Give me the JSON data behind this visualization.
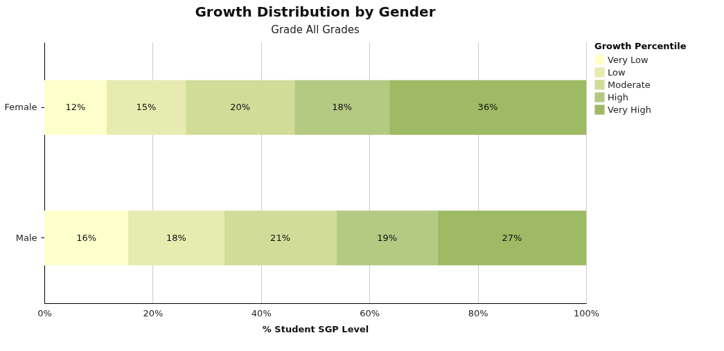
{
  "chart_data": {
    "type": "bar",
    "orientation": "horizontal",
    "stacked": true,
    "title": "Growth Distribution by Gender",
    "subtitle": "Grade All Grades",
    "xlabel": "% Student SGP Level",
    "legend_title": "Growth Percentile",
    "legend": "top right",
    "grid": "x",
    "categories": [
      "Female",
      "Male"
    ],
    "xlim": [
      0,
      100
    ],
    "xticks": [
      {
        "value": 0,
        "label": "0%"
      },
      {
        "value": 20,
        "label": "20%"
      },
      {
        "value": 40,
        "label": "40%"
      },
      {
        "value": 60,
        "label": "60%"
      },
      {
        "value": 80,
        "label": "80%"
      },
      {
        "value": 100,
        "label": "100%"
      }
    ],
    "series": [
      {
        "name": "Very Low",
        "color": "#ffffcc",
        "values": [
          11.5,
          15.5
        ],
        "value_labels": [
          "12%",
          "16%"
        ]
      },
      {
        "name": "Low",
        "color": "#e6ebaf",
        "values": [
          14.6,
          17.7
        ],
        "value_labels": [
          "15%",
          "18%"
        ]
      },
      {
        "name": "Moderate",
        "color": "#d0dc98",
        "values": [
          20.1,
          20.7
        ],
        "value_labels": [
          "20%",
          "21%"
        ]
      },
      {
        "name": "High",
        "color": "#b4c982",
        "values": [
          17.5,
          18.7
        ],
        "value_labels": [
          "18%",
          "19%"
        ]
      },
      {
        "name": "Very High",
        "color": "#9eba64",
        "values": [
          36.3,
          27.4
        ],
        "value_labels": [
          "36%",
          "27%"
        ]
      }
    ]
  }
}
